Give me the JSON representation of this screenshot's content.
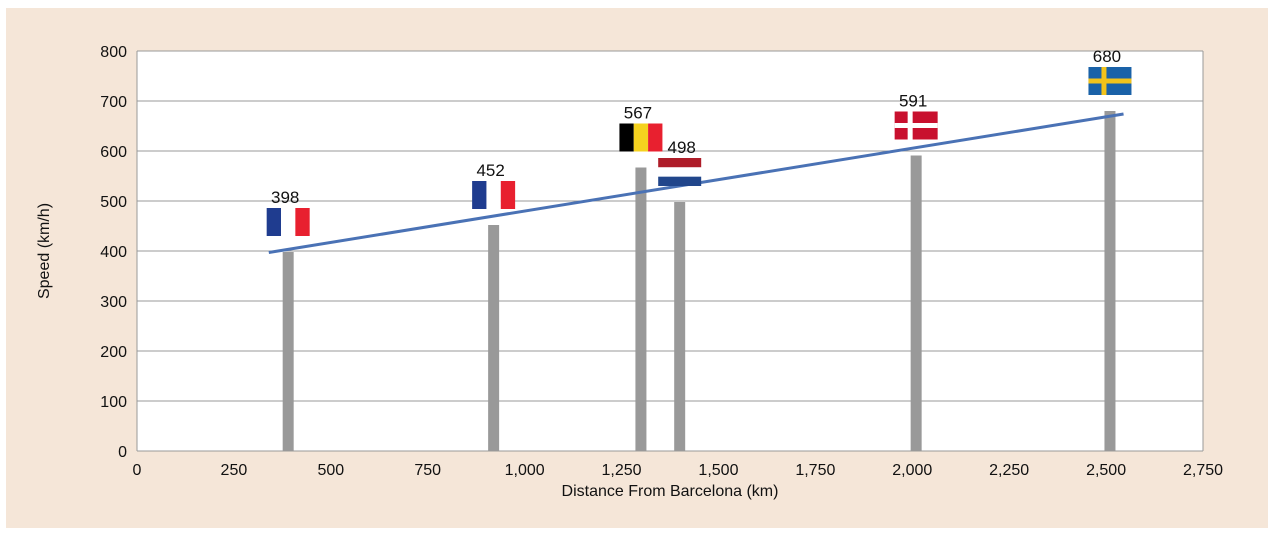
{
  "chart_data": {
    "type": "bar",
    "xlabel": "Distance From Barcelona  (km)",
    "ylabel": "Speed (km/h)",
    "xlim": [
      0,
      2750
    ],
    "ylim": [
      0,
      800
    ],
    "x_ticks": [
      "0",
      "250",
      "500",
      "750",
      "1,000",
      "1,250",
      "1,500",
      "1,750",
      "2,000",
      "2,250",
      "2,500",
      "2,750"
    ],
    "y_ticks": [
      "0",
      "100",
      "200",
      "300",
      "400",
      "500",
      "600",
      "700",
      "800"
    ],
    "grid": true,
    "bars": [
      {
        "country": "France",
        "flag": "france-flag-icon",
        "x": 390,
        "value": 398,
        "label": "398"
      },
      {
        "country": "France",
        "flag": "france-flag-icon",
        "x": 920,
        "value": 452,
        "label": "452"
      },
      {
        "country": "Belgium",
        "flag": "belgium-flag-icon",
        "x": 1300,
        "value": 567,
        "label": "567"
      },
      {
        "country": "Netherlands",
        "flag": "netherlands-flag-icon",
        "x": 1400,
        "value": 498,
        "label": "498"
      },
      {
        "country": "Denmark",
        "flag": "denmark-flag-icon",
        "x": 2010,
        "value": 591,
        "label": "591"
      },
      {
        "country": "Sweden",
        "flag": "sweden-flag-icon",
        "x": 2510,
        "value": 680,
        "label": "680"
      }
    ],
    "trendline": {
      "x": [
        340,
        2545
      ],
      "y": [
        397,
        674
      ]
    },
    "colors": {
      "bar": "#999999",
      "trendline": "#4a72b5",
      "background": "#f5e6d8",
      "plot": "#ffffff",
      "grid": "#999999"
    }
  }
}
